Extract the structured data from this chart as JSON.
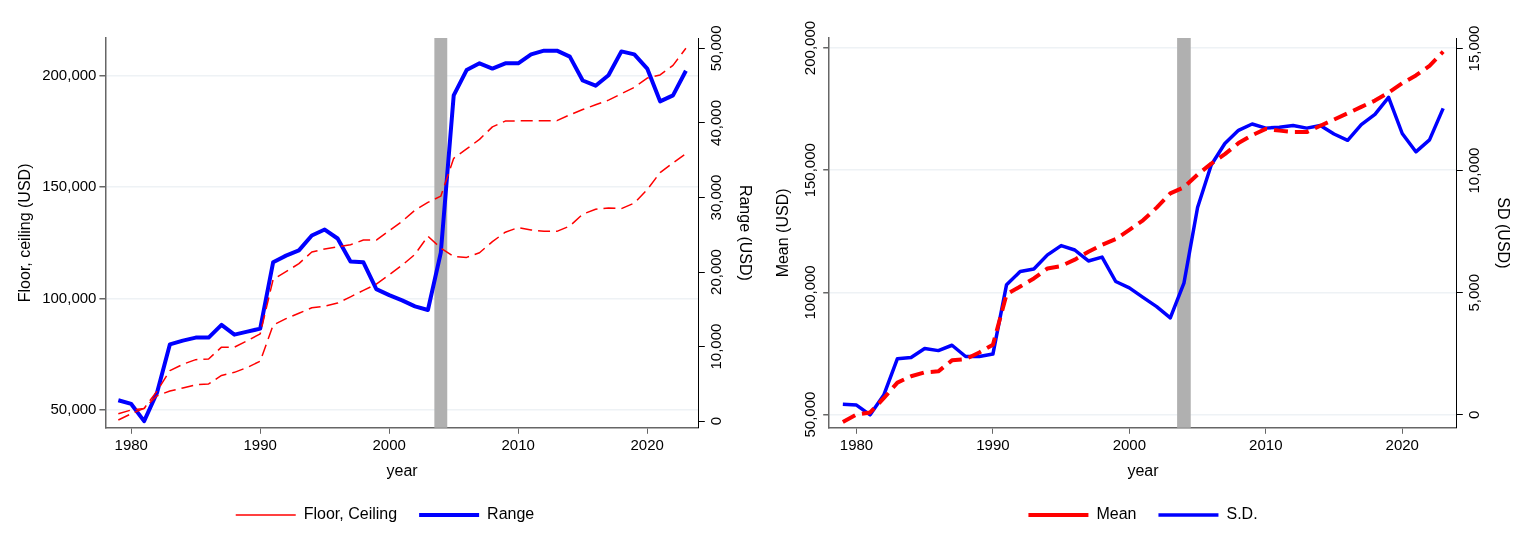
{
  "chart_data": [
    {
      "type": "line",
      "xlabel": "year",
      "ylabel": "Floor, ceiling (USD)",
      "y2label": "Range (USD)",
      "x": [
        1979,
        1980,
        1981,
        1982,
        1983,
        1984,
        1985,
        1986,
        1987,
        1988,
        1989,
        1990,
        1991,
        1992,
        1993,
        1994,
        1995,
        1996,
        1997,
        1998,
        1999,
        2000,
        2001,
        2002,
        2003,
        2004,
        2005,
        2006,
        2007,
        2008,
        2009,
        2010,
        2011,
        2012,
        2013,
        2014,
        2015,
        2016,
        2017,
        2018,
        2019,
        2020,
        2021,
        2022,
        2023
      ],
      "xlim": [
        1978,
        2024
      ],
      "xticks": [
        1980,
        1990,
        2000,
        2010,
        2020
      ],
      "ylim": [
        42000,
        217000
      ],
      "yticks": [
        {
          "value": 50000,
          "label": "50,000"
        },
        {
          "value": 100000,
          "label": "100,000"
        },
        {
          "value": 150000,
          "label": "150,000"
        },
        {
          "value": 200000,
          "label": "200,000"
        }
      ],
      "y2lim": [
        -900,
        51400
      ],
      "y2ticks": [
        0,
        {
          "value": 10000,
          "label": "10,000"
        },
        {
          "value": 20000,
          "label": "20,000"
        },
        {
          "value": 30000,
          "label": "30,000"
        },
        {
          "value": 40000,
          "label": "40,000"
        },
        {
          "value": 50000,
          "label": "50,000"
        }
      ],
      "grid": "y",
      "legend": "bottom",
      "bands": [
        {
          "axis": "x",
          "from": 2003.5,
          "to": 2004.5,
          "color": "#b0b0b0"
        }
      ],
      "series": [
        {
          "name": "Floor, Ceiling",
          "color": "#ff0000",
          "line_style": "dashed",
          "values": [
            45500,
            48300,
            50700,
            56400,
            58500,
            59900,
            61300,
            61700,
            65500,
            66900,
            69100,
            71900,
            88100,
            91000,
            93400,
            95900,
            96600,
            98000,
            100800,
            103700,
            106500,
            110700,
            115000,
            119900,
            128000,
            122700,
            118900,
            118500,
            120600,
            125600,
            129800,
            131900,
            130800,
            130200,
            130200,
            132600,
            137900,
            140100,
            140700,
            140400,
            142900,
            148900,
            156600,
            160900,
            165100
          ]
        },
        {
          "color": "#ff0000",
          "line_style": "dashed",
          "values": [
            48300,
            50000,
            50700,
            58500,
            67700,
            70500,
            72600,
            72900,
            78200,
            78200,
            81100,
            84200,
            108600,
            112100,
            115700,
            120900,
            122300,
            123200,
            124200,
            126300,
            126300,
            130500,
            134700,
            139700,
            143200,
            146000,
            163000,
            167200,
            171500,
            177100,
            179700,
            179800,
            179800,
            179800,
            179900,
            182500,
            184900,
            187000,
            189100,
            192000,
            194800,
            199000,
            200400,
            204700,
            212400
          ]
        },
        {
          "name": "Range",
          "color": "#0000ff",
          "line_style": "solid",
          "axis": "y2",
          "values": [
            2800,
            2300,
            0,
            3800,
            10300,
            10800,
            11200,
            11200,
            12900,
            11600,
            12000,
            12400,
            21300,
            22200,
            22900,
            24900,
            25700,
            24500,
            21400,
            21300,
            17700,
            16900,
            16200,
            15400,
            14900,
            22600,
            43700,
            47100,
            48000,
            47300,
            48000,
            48000,
            49200,
            49700,
            49700,
            48900,
            45700,
            45000,
            46400,
            49600,
            49200,
            47300,
            42900,
            43700,
            47000
          ]
        }
      ]
    },
    {
      "type": "line",
      "xlabel": "year",
      "ylabel": "Mean (USD)",
      "y2label": "SD (USD)",
      "x": [
        1979,
        1980,
        1981,
        1982,
        1983,
        1984,
        1985,
        1986,
        1987,
        1988,
        1989,
        1990,
        1991,
        1992,
        1993,
        1994,
        1995,
        1996,
        1997,
        1998,
        1999,
        2000,
        2001,
        2002,
        2003,
        2004,
        2005,
        2006,
        2007,
        2008,
        2009,
        2010,
        2011,
        2012,
        2013,
        2014,
        2015,
        2016,
        2017,
        2018,
        2019,
        2020,
        2021,
        2022,
        2023
      ],
      "xlim": [
        1978,
        2024
      ],
      "xticks": [
        1980,
        1990,
        2000,
        2010,
        2020
      ],
      "ylim": [
        44600,
        204100
      ],
      "yticks": [
        {
          "value": 50000,
          "label": "50,000"
        },
        {
          "value": 100000,
          "label": "100,000"
        },
        {
          "value": 150000,
          "label": "150,000"
        },
        {
          "value": 200000,
          "label": "200,000"
        }
      ],
      "y2lim": [
        -530,
        15430
      ],
      "y2ticks": [
        0,
        {
          "value": 5000,
          "label": "5,000"
        },
        {
          "value": 10000,
          "label": "10,000"
        },
        {
          "value": 15000,
          "label": "15,000"
        }
      ],
      "grid": "y",
      "legend": "bottom",
      "bands": [
        {
          "axis": "x",
          "from": 2003.5,
          "to": 2004.5,
          "color": "#b0b0b0"
        }
      ],
      "series": [
        {
          "name": "Mean",
          "color": "#ff0000",
          "line_style": "dashed",
          "values": [
            47000,
            50000,
            50900,
            56700,
            63100,
            65700,
            67300,
            67700,
            72200,
            72700,
            75400,
            78600,
            99200,
            102400,
            105700,
            109800,
            110800,
            113400,
            116600,
            119500,
            121800,
            125600,
            129500,
            134700,
            140500,
            143000,
            148200,
            152700,
            156600,
            161100,
            164300,
            166900,
            166200,
            165600,
            165600,
            168200,
            170700,
            173300,
            175900,
            178500,
            181800,
            185600,
            188800,
            192700,
            198500
          ]
        },
        {
          "name": "S.D.",
          "color": "#0000ff",
          "line_style": "solid",
          "axis": "y2",
          "values": [
            430,
            400,
            0,
            810,
            2300,
            2350,
            2720,
            2630,
            2850,
            2390,
            2390,
            2490,
            5330,
            5870,
            5970,
            6550,
            6930,
            6750,
            6300,
            6460,
            5460,
            5200,
            4810,
            4430,
            3970,
            5390,
            8490,
            10230,
            11110,
            11650,
            11910,
            11740,
            11780,
            11850,
            11740,
            11850,
            11500,
            11240,
            11880,
            12300,
            13000,
            11520,
            10770,
            11260,
            12550
          ]
        }
      ]
    }
  ]
}
